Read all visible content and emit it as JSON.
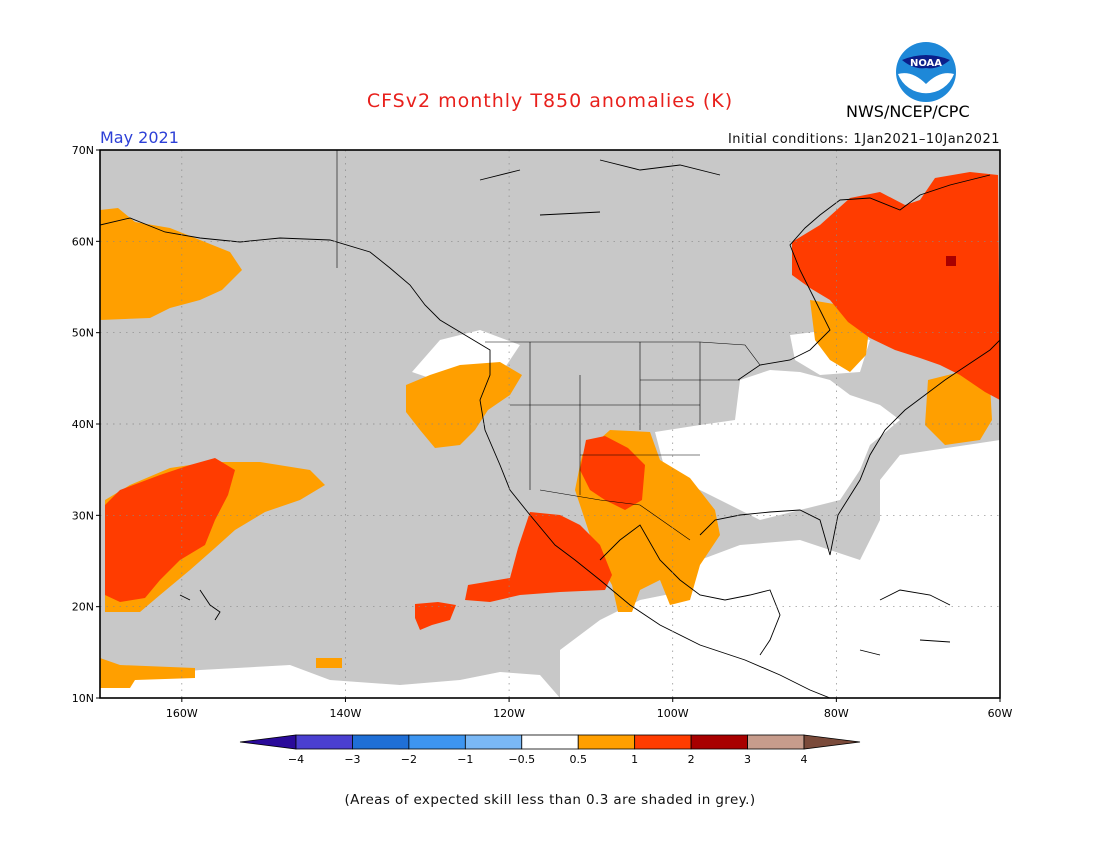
{
  "header": {
    "title": "CFSv2 monthly T850 anomalies (K)",
    "month": "May 2021",
    "initial_conditions": "Initial conditions: 1Jan2021–10Jan2021",
    "agency": "NWS/NCEP/CPC",
    "logo_text": "NOAA"
  },
  "map": {
    "lon_range": [
      -170,
      -60
    ],
    "lat_range": [
      10,
      70
    ],
    "lat_ticks": [
      {
        "value": 70,
        "label": "70N"
      },
      {
        "value": 60,
        "label": "60N"
      },
      {
        "value": 50,
        "label": "50N"
      },
      {
        "value": 40,
        "label": "40N"
      },
      {
        "value": 30,
        "label": "30N"
      },
      {
        "value": 20,
        "label": "20N"
      },
      {
        "value": 10,
        "label": "10N"
      }
    ],
    "lon_ticks": [
      {
        "value": -160,
        "label": "160W"
      },
      {
        "value": -140,
        "label": "140W"
      },
      {
        "value": -120,
        "label": "120W"
      },
      {
        "value": -100,
        "label": "100W"
      },
      {
        "value": -80,
        "label": "80W"
      },
      {
        "value": -60,
        "label": "60W"
      }
    ],
    "grid": true,
    "colors": {
      "grey_low_skill": "#c8c8c8",
      "near_zero": "#ffffff",
      "0.5_to_1": "#ff9f00",
      "1_to_2": "#ff3c00",
      "2_to_3": "#a80000"
    }
  },
  "colorbar": {
    "labels": [
      "−4",
      "−3",
      "−2",
      "−1",
      "−0.5",
      "0.5",
      "1",
      "2",
      "3",
      "4"
    ],
    "colors": [
      "#2a0a9a",
      "#4a3fd0",
      "#1f6fd6",
      "#3d95f0",
      "#7ab8f5",
      "#ffffff",
      "#ff9f00",
      "#ff3c00",
      "#a80000",
      "#c79c8c",
      "#7a4a3a"
    ]
  },
  "footnote": "(Areas of expected skill less than 0.3 are shaded in grey.)"
}
